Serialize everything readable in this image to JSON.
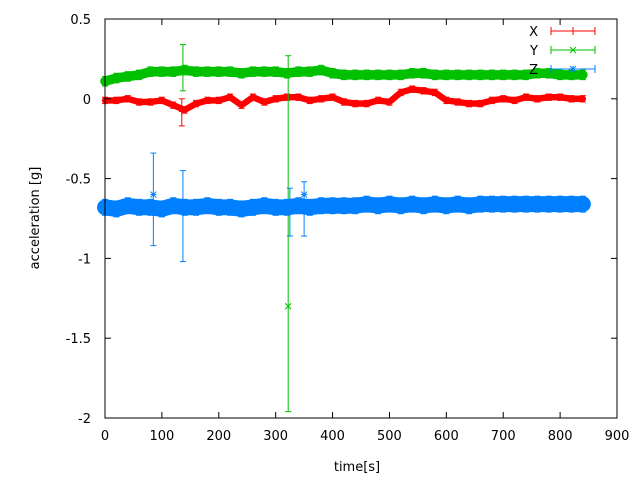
{
  "chart_data": {
    "type": "scatter",
    "title": "",
    "xlabel": "time[s]",
    "ylabel": "acceleration [g]",
    "xlim": [
      0,
      900
    ],
    "ylim": [
      -2,
      0.5
    ],
    "xticks": [
      "0",
      "100",
      "200",
      "300",
      "400",
      "500",
      "600",
      "700",
      "800",
      "900"
    ],
    "yticks": [
      "0.5",
      "0",
      "-0.5",
      "-1",
      "-1.5",
      "-2"
    ],
    "grid": false,
    "legend_position": "top-right",
    "x": [
      0,
      20,
      40,
      60,
      80,
      100,
      120,
      140,
      160,
      180,
      200,
      220,
      240,
      260,
      280,
      300,
      320,
      340,
      360,
      380,
      400,
      420,
      440,
      460,
      480,
      500,
      520,
      540,
      560,
      580,
      600,
      620,
      640,
      660,
      680,
      700,
      720,
      740,
      760,
      780,
      800,
      820,
      840
    ],
    "series": [
      {
        "name": "X",
        "color": "#ff0000",
        "marker": "plus",
        "error": 0.02,
        "values": [
          -0.01,
          -0.01,
          0.0,
          -0.02,
          -0.02,
          -0.01,
          -0.04,
          -0.07,
          -0.03,
          -0.01,
          -0.01,
          0.01,
          -0.04,
          0.01,
          -0.02,
          0.0,
          0.01,
          0.01,
          -0.01,
          0.0,
          0.01,
          -0.02,
          -0.03,
          -0.03,
          -0.01,
          -0.02,
          0.04,
          0.06,
          0.05,
          0.04,
          -0.01,
          -0.02,
          -0.03,
          -0.03,
          -0.01,
          0.0,
          -0.01,
          0.01,
          0.0,
          0.01,
          0.01,
          0.0,
          0.0
        ],
        "extra_points": [
          {
            "x": 135,
            "y": -0.08,
            "low": -0.17,
            "high": 0.0
          }
        ]
      },
      {
        "name": "Y",
        "color": "#00c000",
        "marker": "cross",
        "error": 0.03,
        "values": [
          0.11,
          0.13,
          0.14,
          0.15,
          0.17,
          0.17,
          0.17,
          0.18,
          0.17,
          0.17,
          0.17,
          0.17,
          0.16,
          0.17,
          0.17,
          0.17,
          0.16,
          0.17,
          0.17,
          0.18,
          0.16,
          0.15,
          0.15,
          0.15,
          0.15,
          0.15,
          0.15,
          0.16,
          0.16,
          0.15,
          0.15,
          0.15,
          0.15,
          0.15,
          0.15,
          0.15,
          0.15,
          0.15,
          0.16,
          0.16,
          0.15,
          0.15,
          0.15
        ],
        "extra_points": [
          {
            "x": 137,
            "y": 0.18,
            "low": 0.05,
            "high": 0.34
          },
          {
            "x": 322,
            "y": -1.3,
            "low": -1.96,
            "high": 0.27
          }
        ]
      },
      {
        "name": "Z",
        "color": "#0080ff",
        "marker": "star",
        "error": 0.05,
        "values": [
          -0.68,
          -0.69,
          -0.67,
          -0.68,
          -0.68,
          -0.69,
          -0.67,
          -0.68,
          -0.68,
          -0.67,
          -0.68,
          -0.68,
          -0.69,
          -0.68,
          -0.67,
          -0.68,
          -0.68,
          -0.67,
          -0.68,
          -0.67,
          -0.67,
          -0.67,
          -0.67,
          -0.66,
          -0.67,
          -0.66,
          -0.67,
          -0.66,
          -0.67,
          -0.66,
          -0.67,
          -0.66,
          -0.67,
          -0.66,
          -0.66,
          -0.66,
          -0.66,
          -0.66,
          -0.66,
          -0.66,
          -0.66,
          -0.66,
          -0.66
        ],
        "extra_points": [
          {
            "x": 85,
            "y": -0.6,
            "low": -0.92,
            "high": -0.34
          },
          {
            "x": 137,
            "y": -0.7,
            "low": -1.02,
            "high": -0.45
          },
          {
            "x": 350,
            "y": -0.6,
            "low": -0.86,
            "high": -0.52
          },
          {
            "x": 325,
            "y": -0.7,
            "low": -0.86,
            "high": -0.56
          }
        ]
      }
    ]
  }
}
